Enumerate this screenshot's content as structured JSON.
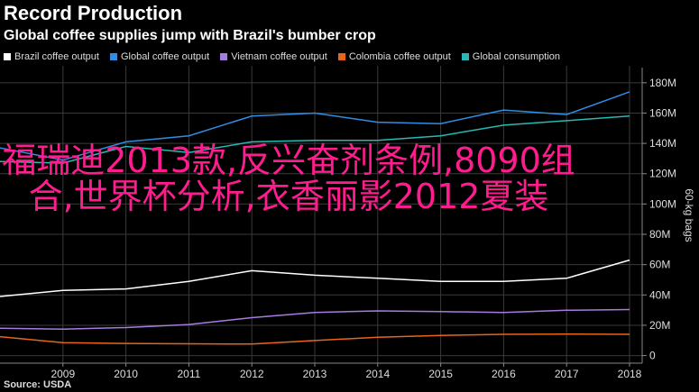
{
  "header": {
    "title": "Record Production",
    "subtitle": "Global coffee supplies jump with Brazil's bumber crop"
  },
  "overlay_text": "福瑞迪2013款,反兴奋剂条例,8090组合,世界杯分析,衣香丽影2012夏装",
  "source": "Source: USDA",
  "colors": {
    "brazil": "#ffffff",
    "global_output": "#2f8de4",
    "vietnam": "#a77ce0",
    "colombia": "#e8641b",
    "global_consumption": "#27b9b4",
    "overlay": "#ff1c8f"
  },
  "chart_data": {
    "type": "line",
    "x": [
      2008,
      2009,
      2010,
      2011,
      2012,
      2013,
      2014,
      2015,
      2016,
      2017,
      2018
    ],
    "x_tick_labels": [
      "2009",
      "2010",
      "2011",
      "2012",
      "2013",
      "2014",
      "2015",
      "2016",
      "2017",
      "2018"
    ],
    "ylabel": "60-kg bags",
    "ylim": [
      -5,
      190
    ],
    "y_ticks": [
      0,
      20,
      40,
      60,
      80,
      100,
      120,
      140,
      160,
      180
    ],
    "y_tick_labels": [
      "0",
      "20M",
      "40M",
      "60M",
      "80M",
      "100M",
      "120M",
      "140M",
      "160M",
      "180M"
    ],
    "legend_position": "top",
    "grid": true,
    "series": [
      {
        "name": "Brazil coffee output",
        "color_key": "brazil",
        "values": [
          39,
          43,
          44,
          49,
          56,
          53,
          51,
          49,
          49,
          51,
          63
        ]
      },
      {
        "name": "Global coffee output",
        "color_key": "global_output",
        "values": [
          137,
          129,
          141,
          145,
          158,
          160,
          154,
          153,
          162,
          159,
          174
        ]
      },
      {
        "name": "Vietnam coffee output",
        "color_key": "vietnam",
        "values": [
          18,
          17.5,
          18.5,
          20.5,
          25,
          28.5,
          29.5,
          29,
          28.5,
          29.9,
          30.4
        ]
      },
      {
        "name": "Colombia coffee output",
        "color_key": "colombia",
        "values": [
          12.5,
          8.5,
          8,
          7.8,
          7.6,
          9.9,
          12.1,
          13.3,
          14,
          14.2,
          14
        ]
      },
      {
        "name": "Global consumption",
        "color_key": "global_consumption",
        "values": [
          128,
          127,
          138,
          134,
          141,
          142,
          142,
          145,
          152,
          155,
          158
        ]
      }
    ]
  }
}
